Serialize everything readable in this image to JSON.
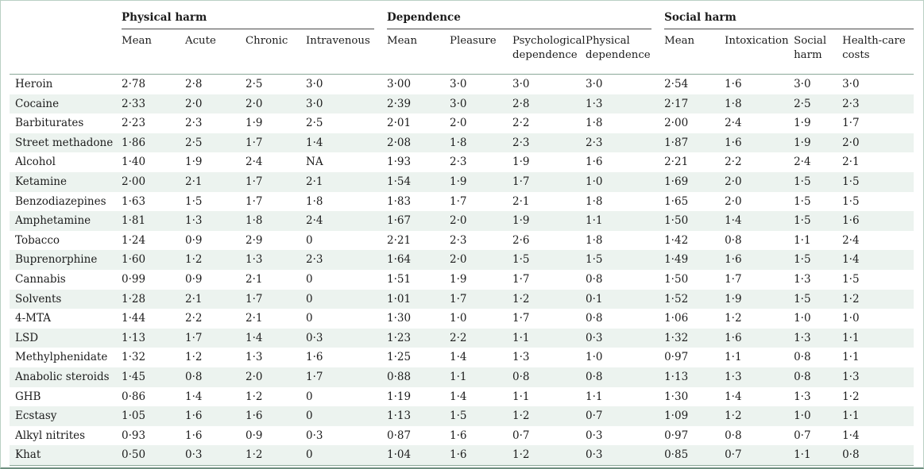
{
  "groups": {
    "physical": "Physical harm",
    "dependence": "Dependence",
    "social": "Social harm"
  },
  "columns": {
    "physical": [
      "Mean",
      "Acute",
      "Chronic",
      "Intravenous"
    ],
    "dependence": [
      "Mean",
      "Pleasure",
      "Psychological dependence",
      "Physical dependence"
    ],
    "social": [
      "Mean",
      "Intoxication",
      "Social harm",
      "Health-care costs"
    ]
  },
  "rows": [
    {
      "drug": "Heroin",
      "values": [
        "2·78",
        "2·8",
        "2·5",
        "3·0",
        "3·00",
        "3·0",
        "3·0",
        "3·0",
        "2·54",
        "1·6",
        "3·0",
        "3·0"
      ]
    },
    {
      "drug": "Cocaine",
      "values": [
        "2·33",
        "2·0",
        "2·0",
        "3·0",
        "2·39",
        "3·0",
        "2·8",
        "1·3",
        "2·17",
        "1·8",
        "2·5",
        "2·3"
      ]
    },
    {
      "drug": "Barbiturates",
      "values": [
        "2·23",
        "2·3",
        "1·9",
        "2·5",
        "2·01",
        "2·0",
        "2·2",
        "1·8",
        "2·00",
        "2·4",
        "1·9",
        "1·7"
      ]
    },
    {
      "drug": "Street methadone",
      "values": [
        "1·86",
        "2·5",
        "1·7",
        "1·4",
        "2·08",
        "1·8",
        "2·3",
        "2·3",
        "1·87",
        "1·6",
        "1·9",
        "2·0"
      ]
    },
    {
      "drug": "Alcohol",
      "values": [
        "1·40",
        "1·9",
        "2·4",
        "NA",
        "1·93",
        "2·3",
        "1·9",
        "1·6",
        "2·21",
        "2·2",
        "2·4",
        "2·1"
      ]
    },
    {
      "drug": "Ketamine",
      "values": [
        "2·00",
        "2·1",
        "1·7",
        "2·1",
        "1·54",
        "1·9",
        "1·7",
        "1·0",
        "1·69",
        "2·0",
        "1·5",
        "1·5"
      ]
    },
    {
      "drug": "Benzodiazepines",
      "values": [
        "1·63",
        "1·5",
        "1·7",
        "1·8",
        "1·83",
        "1·7",
        "2·1",
        "1·8",
        "1·65",
        "2·0",
        "1·5",
        "1·5"
      ]
    },
    {
      "drug": "Amphetamine",
      "values": [
        "1·81",
        "1·3",
        "1·8",
        "2·4",
        "1·67",
        "2·0",
        "1·9",
        "1·1",
        "1·50",
        "1·4",
        "1·5",
        "1·6"
      ]
    },
    {
      "drug": "Tobacco",
      "values": [
        "1·24",
        "0·9",
        "2·9",
        "0",
        "2·21",
        "2·3",
        "2·6",
        "1·8",
        "1·42",
        "0·8",
        "1·1",
        "2·4"
      ]
    },
    {
      "drug": "Buprenorphine",
      "values": [
        "1·60",
        "1·2",
        "1·3",
        "2·3",
        "1·64",
        "2·0",
        "1·5",
        "1·5",
        "1·49",
        "1·6",
        "1·5",
        "1·4"
      ]
    },
    {
      "drug": "Cannabis",
      "values": [
        "0·99",
        "0·9",
        "2·1",
        "0",
        "1·51",
        "1·9",
        "1·7",
        "0·8",
        "1·50",
        "1·7",
        "1·3",
        "1·5"
      ]
    },
    {
      "drug": "Solvents",
      "values": [
        "1·28",
        "2·1",
        "1·7",
        "0",
        "1·01",
        "1·7",
        "1·2",
        "0·1",
        "1·52",
        "1·9",
        "1·5",
        "1·2"
      ]
    },
    {
      "drug": "4-MTA",
      "values": [
        "1·44",
        "2·2",
        "2·1",
        "0",
        "1·30",
        "1·0",
        "1·7",
        "0·8",
        "1·06",
        "1·2",
        "1·0",
        "1·0"
      ]
    },
    {
      "drug": "LSD",
      "values": [
        "1·13",
        "1·7",
        "1·4",
        "0·3",
        "1·23",
        "2·2",
        "1·1",
        "0·3",
        "1·32",
        "1·6",
        "1·3",
        "1·1"
      ]
    },
    {
      "drug": "Methylphenidate",
      "values": [
        "1·32",
        "1·2",
        "1·3",
        "1·6",
        "1·25",
        "1·4",
        "1·3",
        "1·0",
        "0·97",
        "1·1",
        "0·8",
        "1·1"
      ]
    },
    {
      "drug": "Anabolic steroids",
      "values": [
        "1·45",
        "0·8",
        "2·0",
        "1·7",
        "0·88",
        "1·1",
        "0·8",
        "0·8",
        "1·13",
        "1·3",
        "0·8",
        "1·3"
      ]
    },
    {
      "drug": "GHB",
      "values": [
        "0·86",
        "1·4",
        "1·2",
        "0",
        "1·19",
        "1·4",
        "1·1",
        "1·1",
        "1·30",
        "1·4",
        "1·3",
        "1·2"
      ]
    },
    {
      "drug": "Ecstasy",
      "values": [
        "1·05",
        "1·6",
        "1·6",
        "0",
        "1·13",
        "1·5",
        "1·2",
        "0·7",
        "1·09",
        "1·2",
        "1·0",
        "1·1"
      ]
    },
    {
      "drug": "Alkyl nitrites",
      "values": [
        "0·93",
        "1·6",
        "0·9",
        "0·3",
        "0·87",
        "1·6",
        "0·7",
        "0·3",
        "0·97",
        "0·8",
        "0·7",
        "1·4"
      ]
    },
    {
      "drug": "Khat",
      "values": [
        "0·50",
        "0·3",
        "1·2",
        "0",
        "1·04",
        "1·6",
        "1·2",
        "0·3",
        "0·85",
        "0·7",
        "1·1",
        "0·8"
      ]
    }
  ]
}
